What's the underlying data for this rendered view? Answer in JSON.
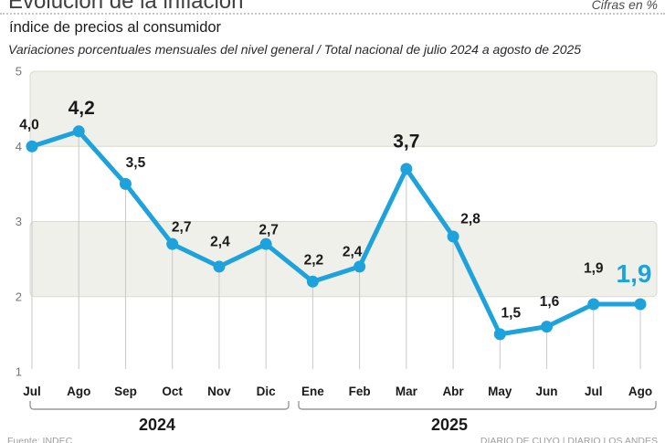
{
  "header": {
    "title": "Evolución de la inflación",
    "units_note": "Cifras en %",
    "subtitle": "índice de precios al consumidor",
    "description": "Variaciones porcentuales mensuales del nivel general / Total nacional de julio 2024 a agosto de 2025"
  },
  "chart_data": {
    "type": "line",
    "title": "Evolución de la inflación",
    "subtitle": "índice de precios al consumidor",
    "x": [
      "Jul",
      "Ago",
      "Sep",
      "Oct",
      "Nov",
      "Dic",
      "Ene",
      "Feb",
      "Mar",
      "Abr",
      "May",
      "Jun",
      "Jul",
      "Ago"
    ],
    "values": [
      4.0,
      4.2,
      3.5,
      2.7,
      2.4,
      2.7,
      2.2,
      2.4,
      3.7,
      2.8,
      1.5,
      1.6,
      1.9,
      1.9
    ],
    "point_labels": [
      "4,0",
      "4,2",
      "3,5",
      "2,7",
      "2,4",
      "2,7",
      "2,2",
      "2,4",
      "3,7",
      "2,8",
      "1,5",
      "1,6",
      "1,9",
      "1,9"
    ],
    "emphasized_points": [
      1,
      8
    ],
    "highlight_last_point": true,
    "ylim": [
      1,
      5
    ],
    "yticks": [
      5,
      4,
      3,
      2,
      1
    ],
    "shaded_bands": [
      [
        4,
        5
      ],
      [
        2,
        3
      ]
    ],
    "grid": "point-leader-lines",
    "legend": "none",
    "line_color": "#1da2dc",
    "band_fill_color": "#f0f0ea",
    "band_border_color": "#dadad2",
    "leader_line_color": "#c8c8c8",
    "label_color": "#1a1a1a",
    "axis_tick_color": "#757575",
    "year_groups": [
      {
        "label": "2024",
        "start_index": 0,
        "end_index": 5
      },
      {
        "label": "2025",
        "start_index": 6,
        "end_index": 13
      }
    ]
  },
  "footer": {
    "source": "Fuente: INDEC",
    "credit": "DIARIO DE CUYO | DIARIO LOS ANDES"
  }
}
